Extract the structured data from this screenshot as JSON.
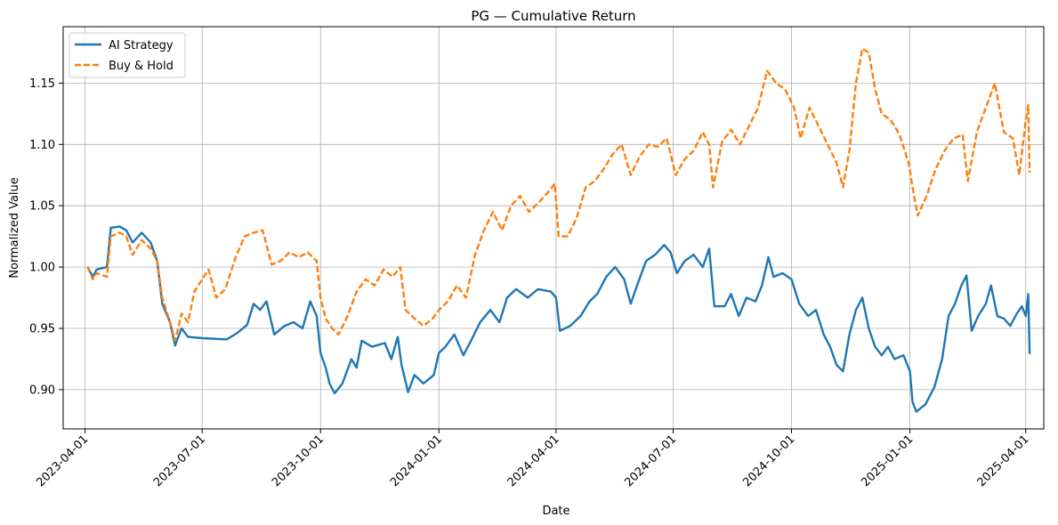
{
  "chart_data": {
    "type": "line",
    "title": "PG — Cumulative Return",
    "xlabel": "Date",
    "ylabel": "Normalized Value",
    "grid": true,
    "legend_position": "top-left",
    "xlim": [
      "2023-03-15",
      "2025-04-15"
    ],
    "ylim": [
      0.868,
      1.196
    ],
    "x_ticks": [
      "2023-04-01",
      "2023-07-01",
      "2023-10-01",
      "2024-01-01",
      "2024-04-01",
      "2024-07-01",
      "2024-10-01",
      "2025-01-01",
      "2025-04-01"
    ],
    "y_ticks": [
      "0.90",
      "0.95",
      "1.00",
      "1.05",
      "1.10",
      "1.15"
    ],
    "series": [
      {
        "name": "AI Strategy",
        "color": "#1f77b4",
        "style": "solid",
        "points": [
          [
            "2023-04-03",
            1.0
          ],
          [
            "2023-04-07",
            0.992
          ],
          [
            "2023-04-10",
            0.998
          ],
          [
            "2023-04-18",
            1.0
          ],
          [
            "2023-04-21",
            1.032
          ],
          [
            "2023-04-28",
            1.033
          ],
          [
            "2023-05-03",
            1.03
          ],
          [
            "2023-05-08",
            1.02
          ],
          [
            "2023-05-15",
            1.028
          ],
          [
            "2023-05-22",
            1.02
          ],
          [
            "2023-05-27",
            1.005
          ],
          [
            "2023-05-31",
            0.97
          ],
          [
            "2023-06-06",
            0.955
          ],
          [
            "2023-06-10",
            0.936
          ],
          [
            "2023-06-15",
            0.95
          ],
          [
            "2023-06-20",
            0.943
          ],
          [
            "2023-07-01",
            0.942
          ],
          [
            "2023-07-20",
            0.941
          ],
          [
            "2023-07-28",
            0.946
          ],
          [
            "2023-08-05",
            0.953
          ],
          [
            "2023-08-10",
            0.97
          ],
          [
            "2023-08-15",
            0.965
          ],
          [
            "2023-08-20",
            0.972
          ],
          [
            "2023-08-26",
            0.945
          ],
          [
            "2023-09-03",
            0.952
          ],
          [
            "2023-09-10",
            0.955
          ],
          [
            "2023-09-17",
            0.95
          ],
          [
            "2023-09-23",
            0.972
          ],
          [
            "2023-09-28",
            0.96
          ],
          [
            "2023-10-01",
            0.93
          ],
          [
            "2023-10-05",
            0.918
          ],
          [
            "2023-10-08",
            0.905
          ],
          [
            "2023-10-12",
            0.897
          ],
          [
            "2023-10-18",
            0.905
          ],
          [
            "2023-10-25",
            0.925
          ],
          [
            "2023-10-29",
            0.918
          ],
          [
            "2023-11-02",
            0.94
          ],
          [
            "2023-11-10",
            0.935
          ],
          [
            "2023-11-20",
            0.938
          ],
          [
            "2023-11-25",
            0.925
          ],
          [
            "2023-11-30",
            0.943
          ],
          [
            "2023-12-03",
            0.92
          ],
          [
            "2023-12-08",
            0.898
          ],
          [
            "2023-12-13",
            0.912
          ],
          [
            "2023-12-20",
            0.905
          ],
          [
            "2023-12-28",
            0.912
          ],
          [
            "2024-01-01",
            0.93
          ],
          [
            "2024-01-06",
            0.935
          ],
          [
            "2024-01-13",
            0.945
          ],
          [
            "2024-01-20",
            0.928
          ],
          [
            "2024-01-26",
            0.94
          ],
          [
            "2024-02-02",
            0.955
          ],
          [
            "2024-02-10",
            0.965
          ],
          [
            "2024-02-17",
            0.955
          ],
          [
            "2024-02-23",
            0.975
          ],
          [
            "2024-03-01",
            0.982
          ],
          [
            "2024-03-10",
            0.975
          ],
          [
            "2024-03-18",
            0.982
          ],
          [
            "2024-03-28",
            0.98
          ],
          [
            "2024-04-01",
            0.975
          ],
          [
            "2024-04-04",
            0.948
          ],
          [
            "2024-04-12",
            0.952
          ],
          [
            "2024-04-20",
            0.96
          ],
          [
            "2024-04-27",
            0.972
          ],
          [
            "2024-05-03",
            0.978
          ],
          [
            "2024-05-10",
            0.992
          ],
          [
            "2024-05-17",
            1.0
          ],
          [
            "2024-05-24",
            0.99
          ],
          [
            "2024-05-29",
            0.97
          ],
          [
            "2024-06-03",
            0.985
          ],
          [
            "2024-06-10",
            1.005
          ],
          [
            "2024-06-17",
            1.01
          ],
          [
            "2024-06-24",
            1.018
          ],
          [
            "2024-06-29",
            1.012
          ],
          [
            "2024-07-04",
            0.995
          ],
          [
            "2024-07-10",
            1.005
          ],
          [
            "2024-07-17",
            1.01
          ],
          [
            "2024-07-24",
            1.0
          ],
          [
            "2024-07-29",
            1.015
          ],
          [
            "2024-08-02",
            0.968
          ],
          [
            "2024-08-10",
            0.968
          ],
          [
            "2024-08-15",
            0.978
          ],
          [
            "2024-08-21",
            0.96
          ],
          [
            "2024-08-27",
            0.975
          ],
          [
            "2024-09-03",
            0.972
          ],
          [
            "2024-09-08",
            0.985
          ],
          [
            "2024-09-13",
            1.008
          ],
          [
            "2024-09-17",
            0.992
          ],
          [
            "2024-09-24",
            0.995
          ],
          [
            "2024-10-01",
            0.99
          ],
          [
            "2024-10-07",
            0.97
          ],
          [
            "2024-10-14",
            0.96
          ],
          [
            "2024-10-20",
            0.965
          ],
          [
            "2024-10-26",
            0.945
          ],
          [
            "2024-10-31",
            0.935
          ],
          [
            "2024-11-05",
            0.92
          ],
          [
            "2024-11-10",
            0.915
          ],
          [
            "2024-11-15",
            0.945
          ],
          [
            "2024-11-20",
            0.965
          ],
          [
            "2024-11-25",
            0.975
          ],
          [
            "2024-11-30",
            0.95
          ],
          [
            "2024-12-05",
            0.935
          ],
          [
            "2024-12-10",
            0.928
          ],
          [
            "2024-12-15",
            0.935
          ],
          [
            "2024-12-20",
            0.925
          ],
          [
            "2024-12-27",
            0.928
          ],
          [
            "2025-01-01",
            0.915
          ],
          [
            "2025-01-03",
            0.89
          ],
          [
            "2025-01-06",
            0.882
          ],
          [
            "2025-01-13",
            0.888
          ],
          [
            "2025-01-20",
            0.902
          ],
          [
            "2025-01-26",
            0.925
          ],
          [
            "2025-01-31",
            0.96
          ],
          [
            "2025-02-05",
            0.97
          ],
          [
            "2025-02-10",
            0.985
          ],
          [
            "2025-02-14",
            0.993
          ],
          [
            "2025-02-18",
            0.948
          ],
          [
            "2025-02-23",
            0.96
          ],
          [
            "2025-03-01",
            0.97
          ],
          [
            "2025-03-05",
            0.985
          ],
          [
            "2025-03-10",
            0.96
          ],
          [
            "2025-03-15",
            0.958
          ],
          [
            "2025-03-20",
            0.952
          ],
          [
            "2025-03-25",
            0.962
          ],
          [
            "2025-03-29",
            0.968
          ],
          [
            "2025-04-01",
            0.96
          ],
          [
            "2025-04-03",
            0.978
          ],
          [
            "2025-04-04",
            0.929
          ]
        ]
      },
      {
        "name": "Buy & Hold",
        "color": "#ff7f0e",
        "style": "dashed",
        "points": [
          [
            "2023-04-03",
            1.0
          ],
          [
            "2023-04-07",
            0.99
          ],
          [
            "2023-04-10",
            0.995
          ],
          [
            "2023-04-18",
            0.992
          ],
          [
            "2023-04-21",
            1.025
          ],
          [
            "2023-04-28",
            1.028
          ],
          [
            "2023-05-03",
            1.025
          ],
          [
            "2023-05-08",
            1.01
          ],
          [
            "2023-05-15",
            1.022
          ],
          [
            "2023-05-22",
            1.015
          ],
          [
            "2023-05-27",
            1.005
          ],
          [
            "2023-05-31",
            0.975
          ],
          [
            "2023-06-06",
            0.955
          ],
          [
            "2023-06-10",
            0.94
          ],
          [
            "2023-06-15",
            0.962
          ],
          [
            "2023-06-20",
            0.955
          ],
          [
            "2023-06-25",
            0.98
          ],
          [
            "2023-07-01",
            0.99
          ],
          [
            "2023-07-06",
            0.998
          ],
          [
            "2023-07-12",
            0.975
          ],
          [
            "2023-07-19",
            0.982
          ],
          [
            "2023-07-27",
            1.008
          ],
          [
            "2023-08-03",
            1.025
          ],
          [
            "2023-08-10",
            1.028
          ],
          [
            "2023-08-17",
            1.03
          ],
          [
            "2023-08-24",
            1.002
          ],
          [
            "2023-08-31",
            1.005
          ],
          [
            "2023-09-07",
            1.012
          ],
          [
            "2023-09-14",
            1.008
          ],
          [
            "2023-09-21",
            1.012
          ],
          [
            "2023-09-28",
            1.005
          ],
          [
            "2023-10-01",
            0.975
          ],
          [
            "2023-10-05",
            0.958
          ],
          [
            "2023-10-10",
            0.95
          ],
          [
            "2023-10-15",
            0.945
          ],
          [
            "2023-10-22",
            0.96
          ],
          [
            "2023-10-29",
            0.98
          ],
          [
            "2023-11-05",
            0.99
          ],
          [
            "2023-11-12",
            0.985
          ],
          [
            "2023-11-19",
            0.998
          ],
          [
            "2023-11-26",
            0.992
          ],
          [
            "2023-12-02",
            1.0
          ],
          [
            "2023-12-06",
            0.965
          ],
          [
            "2023-12-13",
            0.958
          ],
          [
            "2023-12-20",
            0.952
          ],
          [
            "2023-12-27",
            0.958
          ],
          [
            "2024-01-01",
            0.965
          ],
          [
            "2024-01-08",
            0.972
          ],
          [
            "2024-01-15",
            0.985
          ],
          [
            "2024-01-22",
            0.975
          ],
          [
            "2024-01-29",
            1.01
          ],
          [
            "2024-02-05",
            1.03
          ],
          [
            "2024-02-12",
            1.045
          ],
          [
            "2024-02-19",
            1.03
          ],
          [
            "2024-02-26",
            1.05
          ],
          [
            "2024-03-04",
            1.058
          ],
          [
            "2024-03-11",
            1.045
          ],
          [
            "2024-03-18",
            1.052
          ],
          [
            "2024-03-25",
            1.06
          ],
          [
            "2024-03-31",
            1.068
          ],
          [
            "2024-04-03",
            1.025
          ],
          [
            "2024-04-10",
            1.025
          ],
          [
            "2024-04-17",
            1.04
          ],
          [
            "2024-04-24",
            1.065
          ],
          [
            "2024-05-01",
            1.07
          ],
          [
            "2024-05-08",
            1.08
          ],
          [
            "2024-05-15",
            1.092
          ],
          [
            "2024-05-22",
            1.1
          ],
          [
            "2024-05-29",
            1.075
          ],
          [
            "2024-06-05",
            1.09
          ],
          [
            "2024-06-12",
            1.1
          ],
          [
            "2024-06-19",
            1.098
          ],
          [
            "2024-06-26",
            1.105
          ],
          [
            "2024-07-03",
            1.075
          ],
          [
            "2024-07-10",
            1.088
          ],
          [
            "2024-07-17",
            1.095
          ],
          [
            "2024-07-24",
            1.11
          ],
          [
            "2024-07-29",
            1.1
          ],
          [
            "2024-08-01",
            1.065
          ],
          [
            "2024-08-08",
            1.102
          ],
          [
            "2024-08-15",
            1.112
          ],
          [
            "2024-08-22",
            1.1
          ],
          [
            "2024-08-29",
            1.115
          ],
          [
            "2024-09-05",
            1.13
          ],
          [
            "2024-09-12",
            1.16
          ],
          [
            "2024-09-19",
            1.15
          ],
          [
            "2024-09-26",
            1.145
          ],
          [
            "2024-10-03",
            1.13
          ],
          [
            "2024-10-08",
            1.105
          ],
          [
            "2024-10-15",
            1.13
          ],
          [
            "2024-10-22",
            1.115
          ],
          [
            "2024-10-29",
            1.1
          ],
          [
            "2024-11-05",
            1.085
          ],
          [
            "2024-11-10",
            1.065
          ],
          [
            "2024-11-15",
            1.095
          ],
          [
            "2024-11-20",
            1.15
          ],
          [
            "2024-11-25",
            1.178
          ],
          [
            "2024-11-30",
            1.175
          ],
          [
            "2024-12-05",
            1.145
          ],
          [
            "2024-12-10",
            1.125
          ],
          [
            "2024-12-17",
            1.12
          ],
          [
            "2024-12-24",
            1.108
          ],
          [
            "2024-12-31",
            1.085
          ],
          [
            "2025-01-03",
            1.065
          ],
          [
            "2025-01-07",
            1.042
          ],
          [
            "2025-01-14",
            1.058
          ],
          [
            "2025-01-21",
            1.08
          ],
          [
            "2025-01-28",
            1.095
          ],
          [
            "2025-02-04",
            1.105
          ],
          [
            "2025-02-11",
            1.108
          ],
          [
            "2025-02-15",
            1.07
          ],
          [
            "2025-02-22",
            1.11
          ],
          [
            "2025-03-01",
            1.13
          ],
          [
            "2025-03-08",
            1.15
          ],
          [
            "2025-03-15",
            1.11
          ],
          [
            "2025-03-22",
            1.105
          ],
          [
            "2025-03-27",
            1.075
          ],
          [
            "2025-04-01",
            1.12
          ],
          [
            "2025-04-03",
            1.132
          ],
          [
            "2025-04-04",
            1.077
          ]
        ]
      }
    ]
  }
}
